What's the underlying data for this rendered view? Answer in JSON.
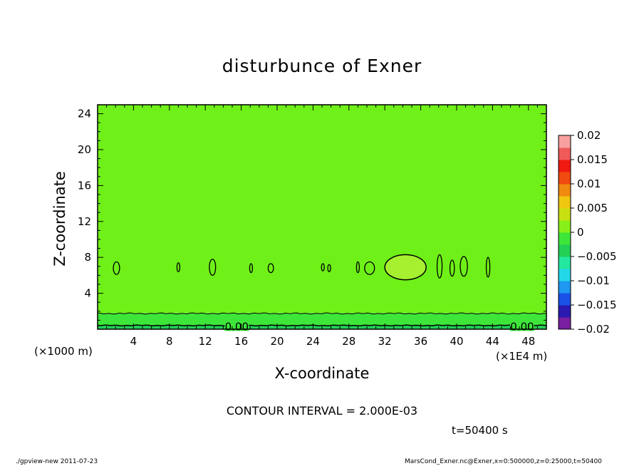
{
  "chart_data": {
    "type": "contour",
    "title": "disturbunce of Exner",
    "xlabel": "X-coordinate",
    "ylabel": "Z-coordinate",
    "x_unit_left": "(×1000 m)",
    "x_unit_right": "(×1E4 m)",
    "xlim": [
      0,
      50
    ],
    "ylim": [
      0,
      25
    ],
    "x_ticks": [
      4,
      8,
      12,
      16,
      20,
      24,
      28,
      32,
      36,
      40,
      44,
      48
    ],
    "y_ticks": [
      4,
      8,
      12,
      16,
      20,
      24
    ],
    "contour_label": "0.00",
    "colorbar": {
      "ticks": [
        "0.02",
        "0.015",
        "0.01",
        "0.005",
        "0",
        "−0.005",
        "−0.01",
        "−0.015",
        "−0.02"
      ],
      "range": [
        -0.02,
        0.02
      ],
      "colors": [
        "#7a1fa0",
        "#2a1ab0",
        "#1a52e8",
        "#1e98f0",
        "#22d8e8",
        "#22e8a0",
        "#22d055",
        "#3ee63a",
        "#88f018",
        "#c8e010",
        "#f0c810",
        "#f08a10",
        "#f04a10",
        "#f01a10",
        "#f05a5a",
        "#f8a0a0"
      ]
    },
    "fields": [
      {
        "z_range": [
          0,
          0.4
        ],
        "value": "-0.002",
        "color": "#22d055"
      },
      {
        "z_range": [
          0.4,
          1.8
        ],
        "value": "0",
        "color": "#3ee63a"
      },
      {
        "z_range": [
          1.8,
          25
        ],
        "value": "0.001",
        "color": "#6ff018"
      }
    ],
    "grid": false
  },
  "contour_interval": "CONTOUR INTERVAL = 2.000E-03",
  "time_label": "t=50400 s",
  "footer": {
    "left": "./gpview-new  2011-07-23",
    "right": "MarsCond_Exner.nc@Exner,x=0:500000,z=0:25000,t=50400"
  }
}
